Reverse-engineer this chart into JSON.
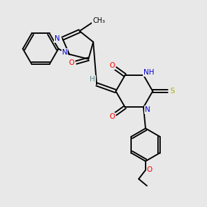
{
  "bg_color": "#e8e8e8",
  "bond_color": "#000000",
  "atom_colors": {
    "N": "#0000cc",
    "O": "#ff0000",
    "S": "#aaaa00",
    "H": "#558888",
    "C": "#000000"
  },
  "figsize": [
    3.0,
    3.0
  ],
  "dpi": 100
}
